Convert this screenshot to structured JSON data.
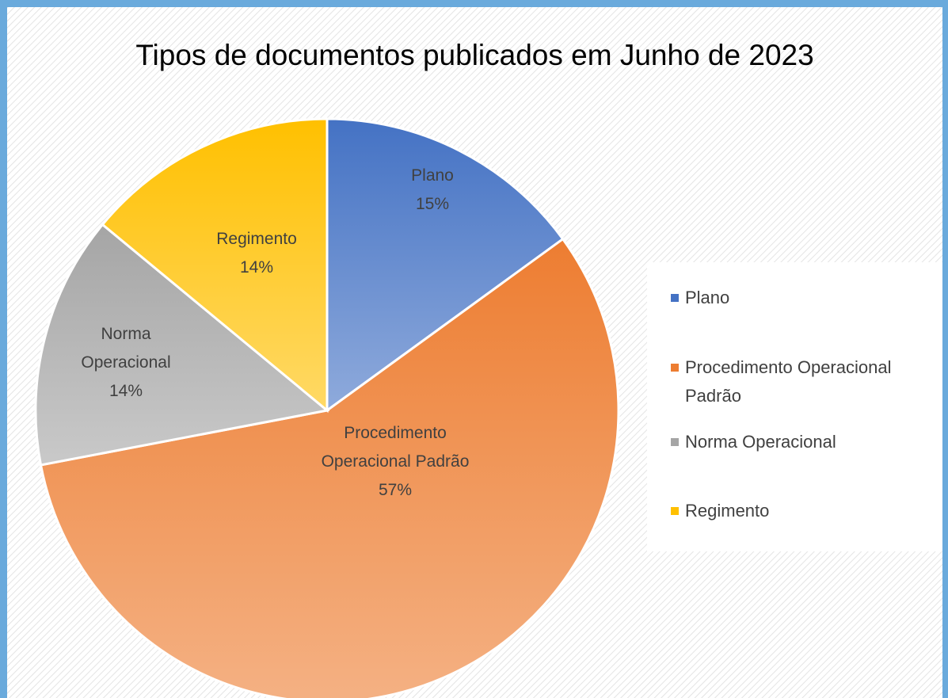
{
  "chart_data": {
    "type": "pie",
    "title": "Tipos de documentos publicados em Junho de 2023",
    "categories": [
      "Plano",
      "Procedimento Operacional Padrão",
      "Norma Operacional",
      "Regimento"
    ],
    "values": [
      15,
      57,
      14,
      14
    ],
    "value_labels": [
      "15%",
      "57%",
      "14%",
      "14%"
    ],
    "colors": [
      "#4472c4",
      "#ed7d31",
      "#a5a5a5",
      "#ffc000"
    ],
    "legend": "right"
  }
}
